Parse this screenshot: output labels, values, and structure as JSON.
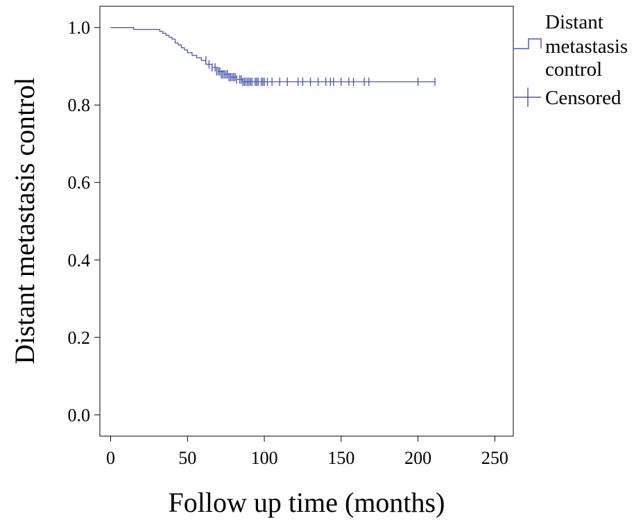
{
  "chart_data": {
    "type": "line",
    "title": "",
    "xlabel": "Follow up time (months)",
    "ylabel": "Distant metastasis control",
    "xlim": [
      -7,
      262
    ],
    "ylim": [
      -0.055,
      1.055
    ],
    "x_ticks": [
      0,
      50,
      100,
      150,
      200,
      250
    ],
    "y_ticks": [
      0.0,
      0.2,
      0.4,
      0.6,
      0.8,
      1.0
    ],
    "x_tick_labels": [
      "0",
      "50",
      "100",
      "150",
      "200",
      "250"
    ],
    "y_tick_labels": [
      "0.0",
      "0.2",
      "0.4",
      "0.6",
      "0.8",
      "1.0"
    ],
    "grid": false,
    "legend_position": "right",
    "legend": {
      "series_label_lines": [
        "Distant",
        "metastasis",
        "control"
      ],
      "censored_label": "Censored"
    },
    "colors": {
      "series": "#4a5ab8",
      "axes": "#000000"
    },
    "series": [
      {
        "name": "Distant metastasis control",
        "step": true,
        "x": [
          0,
          15,
          15,
          32,
          32,
          34,
          34,
          36,
          36,
          38,
          38,
          40,
          40,
          42,
          42,
          44,
          44,
          46,
          46,
          48,
          48,
          50,
          50,
          53,
          53,
          56,
          56,
          59,
          59,
          62,
          62,
          66,
          66,
          70,
          70,
          74,
          74,
          78,
          78,
          82,
          82,
          86,
          86,
          211
        ],
        "y": [
          1.0,
          1.0,
          0.995,
          0.995,
          0.99,
          0.99,
          0.985,
          0.985,
          0.98,
          0.98,
          0.975,
          0.975,
          0.97,
          0.97,
          0.96,
          0.96,
          0.955,
          0.955,
          0.948,
          0.948,
          0.942,
          0.942,
          0.935,
          0.935,
          0.928,
          0.928,
          0.922,
          0.922,
          0.915,
          0.915,
          0.905,
          0.905,
          0.897,
          0.897,
          0.887,
          0.887,
          0.879,
          0.879,
          0.872,
          0.872,
          0.866,
          0.866,
          0.86,
          0.86
        ]
      }
    ],
    "censored": {
      "x": [
        62,
        64,
        66,
        68,
        69,
        70,
        71,
        72,
        73,
        74,
        75,
        76,
        77,
        78,
        79,
        80,
        81,
        82,
        84,
        85,
        86,
        87,
        88,
        89,
        90,
        91,
        92,
        94,
        95,
        96,
        98,
        99,
        100,
        102,
        105,
        110,
        115,
        122,
        125,
        130,
        135,
        140,
        143,
        145,
        150,
        155,
        158,
        165,
        168,
        200,
        211
      ],
      "y": [
        0.915,
        0.905,
        0.897,
        0.897,
        0.887,
        0.887,
        0.887,
        0.879,
        0.879,
        0.879,
        0.879,
        0.879,
        0.872,
        0.872,
        0.872,
        0.872,
        0.872,
        0.866,
        0.866,
        0.866,
        0.86,
        0.86,
        0.86,
        0.86,
        0.86,
        0.86,
        0.86,
        0.86,
        0.86,
        0.86,
        0.86,
        0.86,
        0.86,
        0.86,
        0.86,
        0.86,
        0.86,
        0.86,
        0.86,
        0.86,
        0.86,
        0.86,
        0.86,
        0.86,
        0.86,
        0.86,
        0.86,
        0.86,
        0.86,
        0.86,
        0.86
      ]
    }
  }
}
